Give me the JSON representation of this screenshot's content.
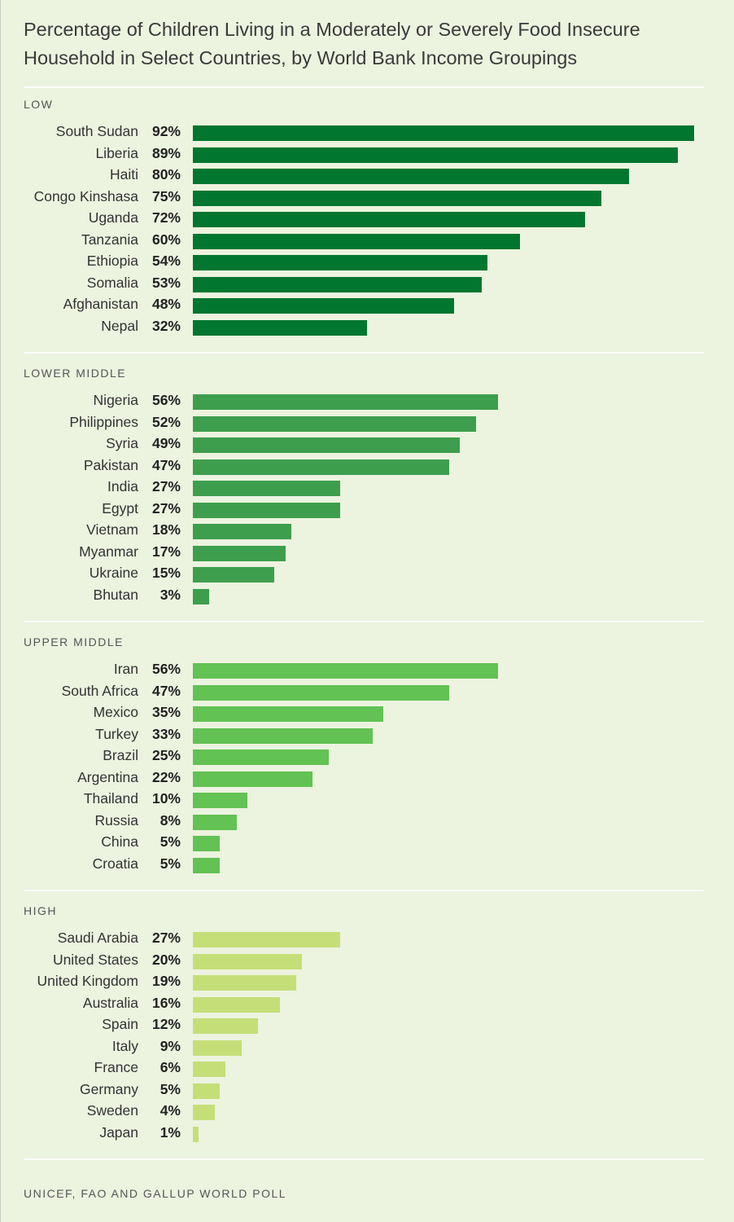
{
  "title": "Percentage of Children Living in a Moderately or Severely Food Insecure Household in Select Countries, by World Bank Income Groupings",
  "source": "UNICEF, FAO AND GALLUP WORLD POLL",
  "chart_data": {
    "type": "bar",
    "orientation": "horizontal",
    "title": "Percentage of Children Living in a Moderately or Severely Food Insecure Household in Select Countries, by World Bank Income Groupings",
    "value_suffix": "%",
    "xlim": [
      0,
      92
    ],
    "grid": false,
    "groups": [
      {
        "label": "LOW",
        "color": "#00762f",
        "rows": [
          {
            "country": "South Sudan",
            "value": 92
          },
          {
            "country": "Liberia",
            "value": 89
          },
          {
            "country": "Haiti",
            "value": 80
          },
          {
            "country": "Congo Kinshasa",
            "value": 75
          },
          {
            "country": "Uganda",
            "value": 72
          },
          {
            "country": "Tanzania",
            "value": 60
          },
          {
            "country": "Ethiopia",
            "value": 54
          },
          {
            "country": "Somalia",
            "value": 53
          },
          {
            "country": "Afghanistan",
            "value": 48
          },
          {
            "country": "Nepal",
            "value": 32
          }
        ]
      },
      {
        "label": "LOWER MIDDLE",
        "color": "#3d9e4d",
        "rows": [
          {
            "country": "Nigeria",
            "value": 56
          },
          {
            "country": "Philippines",
            "value": 52
          },
          {
            "country": "Syria",
            "value": 49
          },
          {
            "country": "Pakistan",
            "value": 47
          },
          {
            "country": "India",
            "value": 27
          },
          {
            "country": "Egypt",
            "value": 27
          },
          {
            "country": "Vietnam",
            "value": 18
          },
          {
            "country": "Myanmar",
            "value": 17
          },
          {
            "country": "Ukraine",
            "value": 15
          },
          {
            "country": "Bhutan",
            "value": 3
          }
        ]
      },
      {
        "label": "UPPER MIDDLE",
        "color": "#62c253",
        "rows": [
          {
            "country": "Iran",
            "value": 56
          },
          {
            "country": "South Africa",
            "value": 47
          },
          {
            "country": "Mexico",
            "value": 35
          },
          {
            "country": "Turkey",
            "value": 33
          },
          {
            "country": "Brazil",
            "value": 25
          },
          {
            "country": "Argentina",
            "value": 22
          },
          {
            "country": "Thailand",
            "value": 10
          },
          {
            "country": "Russia",
            "value": 8
          },
          {
            "country": "China",
            "value": 5
          },
          {
            "country": "Croatia",
            "value": 5
          }
        ]
      },
      {
        "label": "HIGH",
        "color": "#c5df78",
        "rows": [
          {
            "country": "Saudi Arabia",
            "value": 27
          },
          {
            "country": "United States",
            "value": 20
          },
          {
            "country": "United Kingdom",
            "value": 19
          },
          {
            "country": "Australia",
            "value": 16
          },
          {
            "country": "Spain",
            "value": 12
          },
          {
            "country": "Italy",
            "value": 9
          },
          {
            "country": "France",
            "value": 6
          },
          {
            "country": "Germany",
            "value": 5
          },
          {
            "country": "Sweden",
            "value": 4
          },
          {
            "country": "Japan",
            "value": 1
          }
        ]
      }
    ]
  }
}
